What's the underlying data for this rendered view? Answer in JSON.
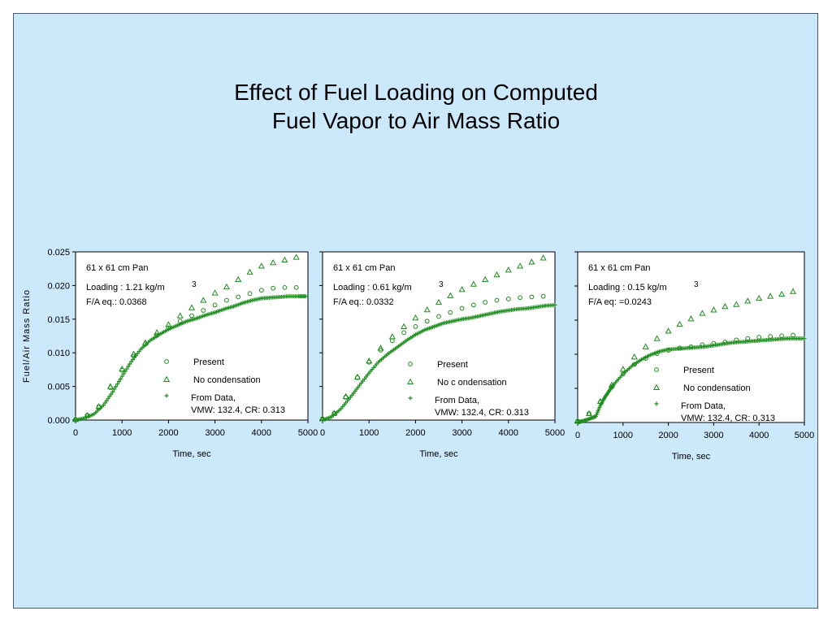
{
  "title": {
    "line1": "Effect of Fuel Loading on Computed",
    "line2": "Fuel Vapor to Air Mass Ratio"
  },
  "colors": {
    "background": "#cce8fb",
    "marker": "#1e8c1e",
    "panel": "#ffffff"
  },
  "chart_data": [
    {
      "type": "scatter",
      "title": "",
      "xlabel": "Time, sec",
      "ylabel": "Fuel/Air Mass Ratio",
      "xlim": [
        0,
        5000
      ],
      "ylim": [
        0,
        0.025
      ],
      "xticks": [
        "0",
        "1000",
        "2000",
        "3000",
        "4000",
        "5000"
      ],
      "yticks": [
        "0.000",
        "0.005",
        "0.010",
        "0.015",
        "0.020",
        "0.025"
      ],
      "annotation": {
        "line1": "61 x 61  cm Pan",
        "line2": "Loading : 1.21 kg/m",
        "sup": "3",
        "line3": "F/A eq.: 0.0368"
      },
      "legend": {
        "present": "Present",
        "no_condensation": "No condensation",
        "from_data_1": "From Data,",
        "from_data_2": "VMW: 132.4, CR: 0.313"
      },
      "series": [
        {
          "name": "Present",
          "marker": "circle",
          "x": [
            0,
            250,
            500,
            750,
            1000,
            1250,
            1500,
            1750,
            2000,
            2250,
            2500,
            2750,
            3000,
            3250,
            3500,
            3750,
            4000,
            4250,
            4500,
            4750
          ],
          "y": [
            0.0001,
            0.0007,
            0.002,
            0.0048,
            0.0074,
            0.0095,
            0.0113,
            0.0126,
            0.0137,
            0.0147,
            0.0155,
            0.0163,
            0.0171,
            0.0178,
            0.0183,
            0.0188,
            0.0193,
            0.0196,
            0.0197,
            0.0197
          ]
        },
        {
          "name": "No condensation",
          "marker": "triangle",
          "x": [
            0,
            250,
            500,
            750,
            1000,
            1250,
            1500,
            1750,
            2000,
            2250,
            2500,
            2750,
            3000,
            3250,
            3500,
            3750,
            4000,
            4250,
            4500,
            4750
          ],
          "y": [
            0.0001,
            0.0007,
            0.002,
            0.005,
            0.0076,
            0.0098,
            0.0115,
            0.013,
            0.0142,
            0.0155,
            0.0167,
            0.0178,
            0.0189,
            0.0198,
            0.0209,
            0.022,
            0.0229,
            0.0234,
            0.0238,
            0.0242
          ]
        },
        {
          "name": "From Data",
          "marker": "plus",
          "x": [
            0,
            200,
            400,
            600,
            800,
            1000,
            1200,
            1400,
            1600,
            1800,
            2000,
            2200,
            2400,
            2600,
            2800,
            3000,
            3200,
            3400,
            3600,
            3800,
            4000,
            4200,
            4400,
            4600,
            4800,
            4950
          ],
          "y": [
            0.0,
            0.0003,
            0.0009,
            0.0022,
            0.0042,
            0.0065,
            0.0087,
            0.0105,
            0.0118,
            0.0127,
            0.0135,
            0.0141,
            0.0147,
            0.0151,
            0.0156,
            0.016,
            0.0165,
            0.0169,
            0.0174,
            0.0178,
            0.0181,
            0.0182,
            0.0183,
            0.0184,
            0.0184,
            0.0184
          ]
        }
      ]
    },
    {
      "type": "scatter",
      "title": "",
      "xlabel": "Time, sec",
      "ylabel": "",
      "xlim": [
        0,
        5000
      ],
      "ylim": [
        0,
        0.025
      ],
      "xticks": [
        "0",
        "1000",
        "2000",
        "3000",
        "4000",
        "5000"
      ],
      "yticks": [],
      "annotation": {
        "line1": "61 x 61  cm Pan",
        "line2": "Loading : 0.61 kg/m",
        "sup": "3",
        "line3": "F/A eq.: 0.0332"
      },
      "legend": {
        "present": "Present",
        "no_condensation": "No c ondensation",
        "from_data_1": "From Data,",
        "from_data_2": "VMW: 132.4, CR: 0.313"
      },
      "series": [
        {
          "name": "Present",
          "marker": "circle",
          "x": [
            0,
            250,
            500,
            750,
            1000,
            1250,
            1500,
            1750,
            2000,
            2250,
            2500,
            2750,
            3000,
            3250,
            3500,
            3750,
            4000,
            4250,
            4500,
            4750
          ],
          "y": [
            0.0002,
            0.001,
            0.0034,
            0.0063,
            0.0086,
            0.0104,
            0.0118,
            0.013,
            0.0139,
            0.0147,
            0.0154,
            0.016,
            0.0166,
            0.0171,
            0.0175,
            0.0178,
            0.018,
            0.0182,
            0.0183,
            0.0184
          ]
        },
        {
          "name": "No condensation",
          "marker": "triangle",
          "x": [
            0,
            250,
            500,
            750,
            1000,
            1250,
            1500,
            1750,
            2000,
            2250,
            2500,
            2750,
            3000,
            3250,
            3500,
            3750,
            4000,
            4250,
            4500,
            4750
          ],
          "y": [
            0.0002,
            0.001,
            0.0035,
            0.0064,
            0.0088,
            0.0107,
            0.0124,
            0.0139,
            0.0152,
            0.0164,
            0.0175,
            0.0185,
            0.0194,
            0.0202,
            0.0209,
            0.0216,
            0.0223,
            0.0229,
            0.0235,
            0.0241
          ]
        },
        {
          "name": "From Data",
          "marker": "plus",
          "x": [
            0,
            200,
            400,
            600,
            800,
            1000,
            1200,
            1400,
            1600,
            1800,
            2000,
            2200,
            2400,
            2600,
            2800,
            3000,
            3200,
            3400,
            3600,
            3800,
            4000,
            4200,
            4400,
            4600,
            4800,
            5000
          ],
          "y": [
            0.0,
            0.0005,
            0.0017,
            0.0034,
            0.0052,
            0.007,
            0.0086,
            0.0098,
            0.0108,
            0.0118,
            0.0127,
            0.0134,
            0.0139,
            0.0144,
            0.0147,
            0.015,
            0.0152,
            0.0155,
            0.0158,
            0.0161,
            0.0163,
            0.0165,
            0.0166,
            0.0168,
            0.017,
            0.0171
          ]
        }
      ]
    },
    {
      "type": "scatter",
      "title": "",
      "xlabel": "Time, sec",
      "ylabel": "",
      "xlim": [
        0,
        5000
      ],
      "ylim": [
        0,
        0.025
      ],
      "xticks": [
        "0",
        "1000",
        "2000",
        "3000",
        "4000",
        "5000"
      ],
      "yticks": [],
      "annotation": {
        "line1": "61 x 61  cm Pan",
        "line2": "Loading : 0.15 kg/m",
        "sup": "3",
        "line3": "F/A eq: =0.0243"
      },
      "legend": {
        "present": "Present",
        "no_condensation": "No condensation",
        "from_data_1": "From Data,",
        "from_data_2": "VMW: 132.4, CR: 0.313"
      },
      "series": [
        {
          "name": "Present",
          "marker": "circle",
          "x": [
            0,
            250,
            500,
            750,
            1000,
            1250,
            1500,
            1750,
            2000,
            2250,
            2500,
            2750,
            3000,
            3250,
            3500,
            3750,
            4000,
            4250,
            4500,
            4750
          ],
          "y": [
            0.0002,
            0.0013,
            0.003,
            0.0052,
            0.0071,
            0.0085,
            0.0094,
            0.0101,
            0.0106,
            0.0109,
            0.0111,
            0.0114,
            0.0116,
            0.0118,
            0.0121,
            0.0123,
            0.0125,
            0.0126,
            0.0127,
            0.0128
          ]
        },
        {
          "name": "No condensation",
          "marker": "triangle",
          "x": [
            0,
            250,
            500,
            750,
            1000,
            1250,
            1500,
            1750,
            2000,
            2250,
            2500,
            2750,
            3000,
            3250,
            3500,
            3750,
            4000,
            4250,
            4500,
            4750
          ],
          "y": [
            0.0002,
            0.0013,
            0.0031,
            0.0055,
            0.0078,
            0.0096,
            0.0111,
            0.0123,
            0.0134,
            0.0144,
            0.0152,
            0.016,
            0.0165,
            0.017,
            0.0173,
            0.0178,
            0.0182,
            0.0185,
            0.0188,
            0.0192
          ]
        },
        {
          "name": "From Data",
          "marker": "plus",
          "x": [
            0,
            100,
            250,
            400,
            500,
            600,
            700,
            800,
            1000,
            1200,
            1400,
            1600,
            1800,
            2000,
            2200,
            2400,
            2600,
            2800,
            3000,
            3200,
            3400,
            3600,
            3800,
            4000,
            4200,
            4400,
            4600,
            4800,
            5000
          ],
          "y": [
            0.0,
            0.0002,
            0.0005,
            0.0009,
            0.0025,
            0.0037,
            0.0047,
            0.0056,
            0.0071,
            0.0083,
            0.0092,
            0.0099,
            0.0104,
            0.0107,
            0.0108,
            0.0109,
            0.011,
            0.0111,
            0.0113,
            0.0115,
            0.0117,
            0.0118,
            0.0119,
            0.012,
            0.0121,
            0.0122,
            0.0123,
            0.0123,
            0.0123
          ]
        }
      ]
    }
  ]
}
